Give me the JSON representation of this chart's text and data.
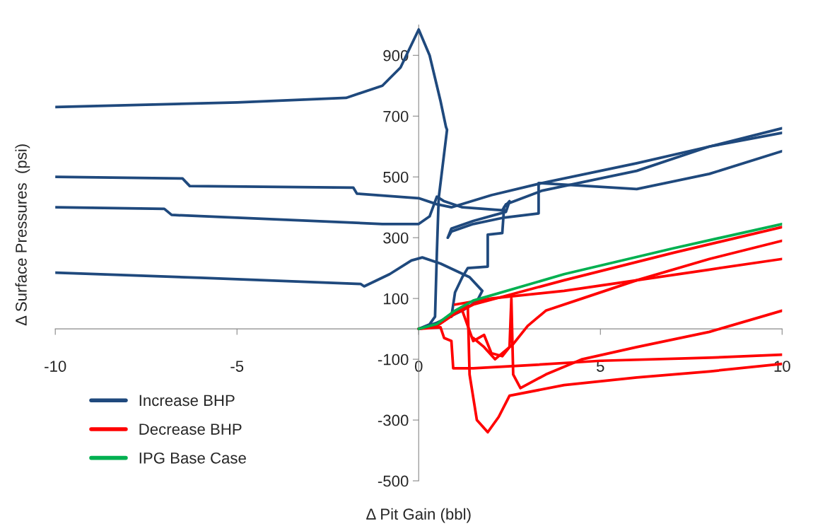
{
  "chart_data": {
    "type": "line",
    "xlabel": "Δ Pit Gain (bbl)",
    "ylabel": "Δ Surface Pressures  (psi)",
    "xlim": [
      -10,
      10
    ],
    "xticks": [
      -10,
      -5,
      0,
      5,
      10
    ],
    "ylim": [
      -500,
      1000
    ],
    "yticks": [
      -500,
      -300,
      -100,
      100,
      300,
      500,
      700,
      900
    ],
    "grid": false,
    "legend": "bottom left",
    "marker": "none",
    "line_style": "solid",
    "series": [
      {
        "name": "Increase BHP",
        "color": "#1f497d",
        "x": [
          -10,
          -5,
          -2,
          -1,
          -0.5,
          0,
          0.3,
          0.6,
          0.75,
          0.78,
          0.55,
          0.5,
          0.45,
          0.3,
          0
        ],
        "values": [
          730,
          745,
          760,
          800,
          860,
          985,
          900,
          750,
          665,
          655,
          430,
          250,
          40,
          15,
          0
        ]
      },
      {
        "color": "#1f497d",
        "x": [
          -10,
          -6.5,
          -6.3,
          -1.8,
          -1.7,
          0,
          0.5,
          0.9,
          2,
          3.4,
          6,
          8,
          10
        ],
        "values": [
          500,
          495,
          470,
          465,
          445,
          430,
          410,
          400,
          440,
          480,
          545,
          600,
          660
        ]
      },
      {
        "color": "#1f497d",
        "x": [
          -10,
          -7,
          -6.8,
          -1,
          0,
          0.3,
          0.5,
          0.7,
          1.2,
          2.3,
          2.4,
          3.4,
          6,
          8,
          10
        ],
        "values": [
          400,
          395,
          375,
          345,
          345,
          370,
          435,
          420,
          400,
          390,
          410,
          455,
          520,
          600,
          645
        ]
      },
      {
        "color": "#1f497d",
        "x": [
          0.9,
          1.0,
          1.2,
          1.35,
          1.9,
          1.9,
          2.3,
          2.35,
          2.5,
          2.4,
          1.5,
          0.9,
          0.8,
          0.9,
          1.5,
          2.3,
          3.3,
          3.3,
          6,
          8,
          10
        ],
        "values": [
          40,
          120,
          170,
          200,
          205,
          310,
          315,
          400,
          420,
          385,
          355,
          330,
          300,
          320,
          345,
          365,
          380,
          480,
          460,
          510,
          585
        ]
      },
      {
        "color": "#1f497d",
        "x": [
          -10,
          -6,
          -1.6,
          -1.5,
          -0.8,
          -0.2,
          0.1,
          0.6,
          1.4,
          1.75,
          1.6,
          1.2,
          0.5,
          0
        ],
        "values": [
          185,
          168,
          148,
          140,
          180,
          225,
          235,
          215,
          170,
          125,
          90,
          60,
          20,
          0
        ]
      },
      {
        "name": "Decrease BHP",
        "color": "#ff0000",
        "x": [
          0,
          0.5,
          1.0,
          1.5,
          4,
          7,
          10
        ],
        "values": [
          0,
          10,
          50,
          80,
          160,
          250,
          335
        ]
      },
      {
        "color": "#ff0000",
        "x": [
          0,
          0.6,
          0.7,
          0.9,
          0.95,
          1.5,
          3,
          5,
          8,
          10
        ],
        "values": [
          0,
          5,
          -30,
          -40,
          -130,
          -130,
          -120,
          -105,
          -95,
          -85
        ]
      },
      {
        "color": "#ff0000",
        "x": [
          0.5,
          1.35,
          1.4,
          1.6,
          1.9,
          2.2,
          2.5,
          4,
          6,
          8,
          10
        ],
        "values": [
          10,
          80,
          -150,
          -300,
          -340,
          -290,
          -220,
          -185,
          -160,
          -140,
          -115
        ]
      },
      {
        "color": "#ff0000",
        "x": [
          1.2,
          1.5,
          1.8,
          2.0,
          2.3,
          2.5,
          2.55,
          2.6,
          2.8,
          3.5,
          4.5,
          6,
          8,
          10
        ],
        "values": [
          60,
          -40,
          -20,
          -80,
          -90,
          -60,
          100,
          -150,
          -195,
          -150,
          -100,
          -60,
          -10,
          60
        ]
      },
      {
        "color": "#ff0000",
        "x": [
          1.5,
          1.8,
          2.1,
          2.6,
          3,
          3.5,
          4.5,
          6,
          8,
          10
        ],
        "values": [
          -30,
          -60,
          -100,
          -50,
          10,
          60,
          100,
          160,
          230,
          290
        ]
      },
      {
        "color": "#ff0000",
        "x": [
          1,
          2,
          4,
          6,
          8,
          10
        ],
        "values": [
          80,
          100,
          125,
          160,
          195,
          230
        ]
      },
      {
        "name": "IPG Base Case",
        "color": "#00b050",
        "x": [
          0,
          0.5,
          1.0,
          1.5,
          4,
          7,
          10
        ],
        "values": [
          0,
          16,
          60,
          93,
          180,
          265,
          345
        ]
      }
    ]
  }
}
